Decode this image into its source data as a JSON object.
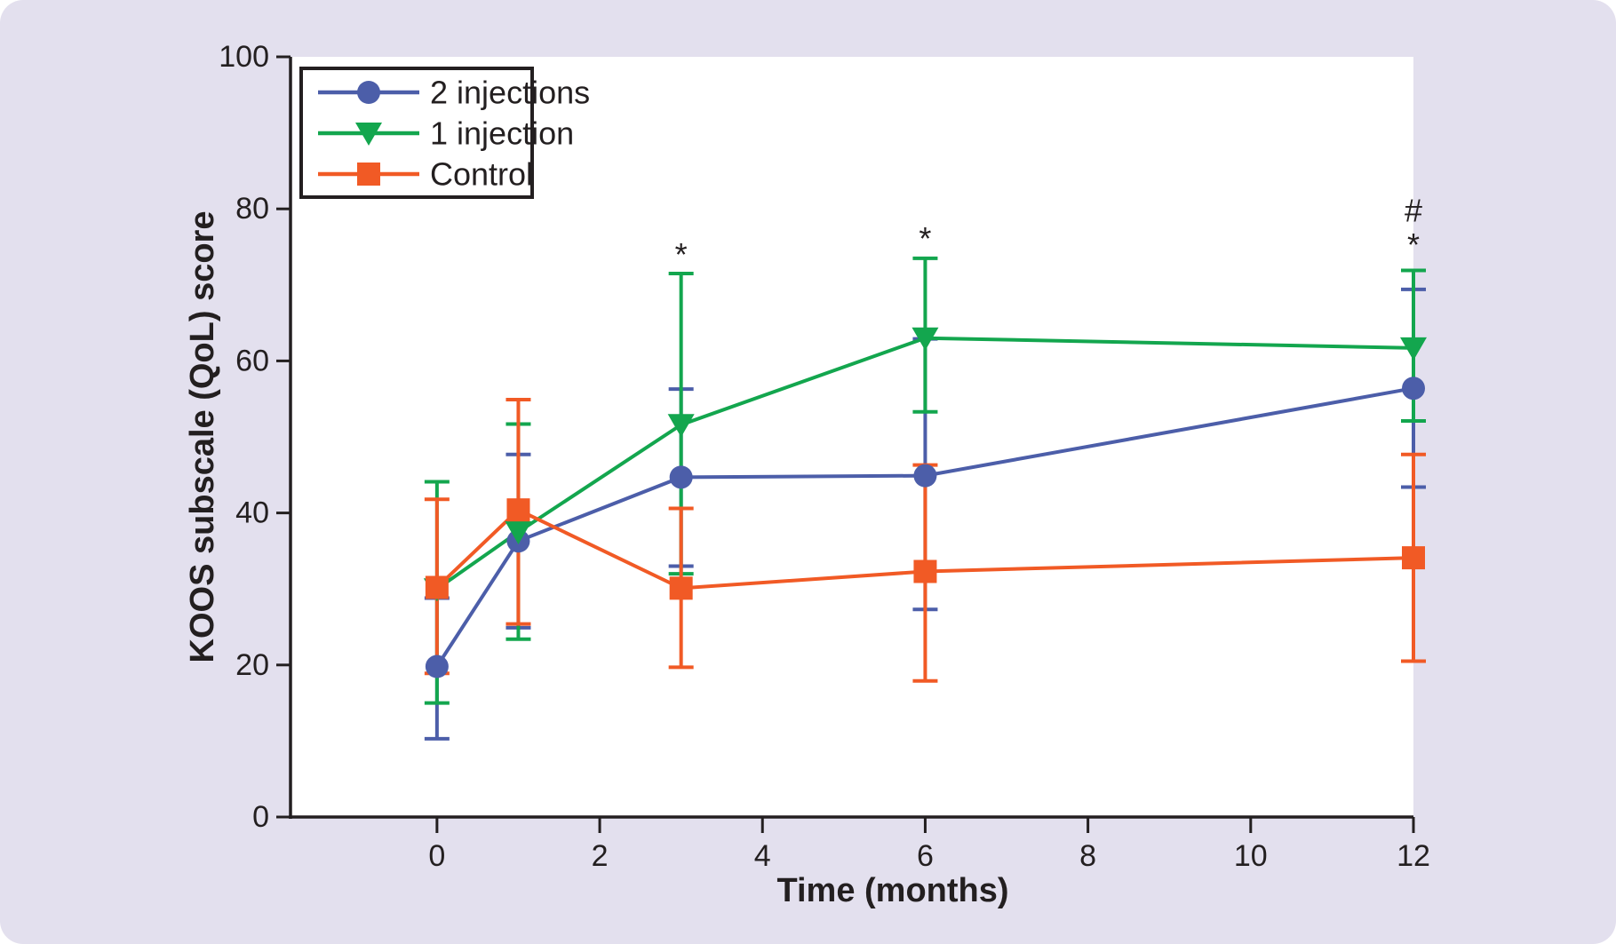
{
  "figure": {
    "background_color": "#e3e0ee",
    "plot_background_color": "#ffffff",
    "axis_color": "#231f20"
  },
  "chart_data": {
    "type": "line",
    "title": "",
    "xlabel": "Time (months)",
    "ylabel": "KOOS subscale (QoL) score",
    "x": [
      0,
      1,
      3,
      6,
      12
    ],
    "xlim": [
      -1.8,
      12
    ],
    "ylim": [
      0,
      100
    ],
    "x_ticks": [
      0,
      2,
      4,
      6,
      8,
      10,
      12
    ],
    "y_ticks": [
      0,
      20,
      40,
      60,
      80,
      100
    ],
    "grid": false,
    "legend_position": "top-left",
    "error_bars": true,
    "series": [
      {
        "name": "2 injections",
        "color": "#4c5ea9",
        "marker": "circle",
        "values": [
          19.8,
          36.3,
          44.7,
          44.9,
          56.4
        ],
        "err_low": [
          10.3,
          24.9,
          33.0,
          27.3,
          43.4
        ],
        "err_high": [
          28.8,
          47.7,
          56.3,
          62.9,
          69.4
        ]
      },
      {
        "name": "1 injection",
        "color": "#13a64e",
        "marker": "triangle-down",
        "values": [
          30.0,
          37.5,
          51.6,
          63.0,
          61.7
        ],
        "err_low": [
          15.0,
          23.4,
          32.0,
          53.3,
          52.1
        ],
        "err_high": [
          44.1,
          51.7,
          71.5,
          73.5,
          71.9
        ]
      },
      {
        "name": "Control",
        "color": "#f15a25",
        "marker": "square",
        "values": [
          30.2,
          40.4,
          30.1,
          32.3,
          34.1
        ],
        "err_low": [
          18.9,
          25.4,
          19.7,
          17.9,
          20.5
        ],
        "err_high": [
          41.8,
          54.9,
          40.6,
          46.3,
          47.7
        ]
      }
    ],
    "annotations": [
      {
        "text": "*",
        "x": 3,
        "y": 74.0
      },
      {
        "text": "*",
        "x": 6,
        "y": 76.1
      },
      {
        "text": "*",
        "x": 12,
        "y": 75.3
      },
      {
        "text": "#",
        "x": 12,
        "y": 79.8
      }
    ]
  }
}
